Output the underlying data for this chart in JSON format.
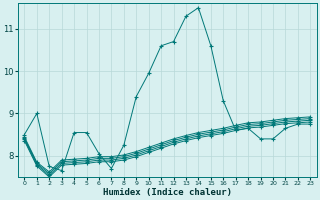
{
  "xlabel": "Humidex (Indice chaleur)",
  "bg_color": "#d8f0f0",
  "grid_color": "#b8d8d8",
  "line_color": "#007878",
  "xlim": [
    -0.5,
    23.5
  ],
  "ylim": [
    7.5,
    11.6
  ],
  "yticks": [
    8,
    9,
    10,
    11
  ],
  "xticks": [
    0,
    1,
    2,
    3,
    4,
    5,
    6,
    7,
    8,
    9,
    10,
    11,
    12,
    13,
    14,
    15,
    16,
    17,
    18,
    19,
    20,
    21,
    22,
    23
  ],
  "series": [
    {
      "x": [
        0,
        1,
        2,
        3,
        4,
        5,
        6,
        7,
        8,
        9,
        10,
        11,
        12,
        13,
        14,
        15,
        16,
        17,
        18,
        19,
        20,
        21,
        22,
        23
      ],
      "y": [
        8.5,
        9.0,
        7.75,
        7.65,
        8.55,
        8.55,
        8.05,
        7.7,
        8.25,
        9.4,
        9.95,
        10.6,
        10.7,
        11.3,
        11.5,
        10.6,
        9.3,
        8.6,
        8.65,
        8.4,
        8.4,
        8.65,
        8.75,
        8.75
      ]
    },
    {
      "x": [
        0,
        1,
        2,
        3,
        4,
        5,
        6,
        7,
        8,
        9,
        10,
        11,
        12,
        13,
        14,
        15,
        16,
        17,
        18,
        19,
        20,
        21,
        22,
        23
      ],
      "y": [
        8.45,
        7.85,
        7.62,
        7.9,
        7.92,
        7.94,
        7.98,
        7.98,
        8.02,
        8.1,
        8.2,
        8.3,
        8.4,
        8.48,
        8.55,
        8.6,
        8.65,
        8.72,
        8.78,
        8.8,
        8.84,
        8.88,
        8.9,
        8.92
      ]
    },
    {
      "x": [
        0,
        1,
        2,
        3,
        4,
        5,
        6,
        7,
        8,
        9,
        10,
        11,
        12,
        13,
        14,
        15,
        16,
        17,
        18,
        19,
        20,
        21,
        22,
        23
      ],
      "y": [
        8.42,
        7.82,
        7.58,
        7.86,
        7.88,
        7.9,
        7.94,
        7.94,
        7.98,
        8.06,
        8.16,
        8.26,
        8.36,
        8.44,
        8.51,
        8.56,
        8.61,
        8.68,
        8.74,
        8.76,
        8.8,
        8.84,
        8.86,
        8.88
      ]
    },
    {
      "x": [
        0,
        1,
        2,
        3,
        4,
        5,
        6,
        7,
        8,
        9,
        10,
        11,
        12,
        13,
        14,
        15,
        16,
        17,
        18,
        19,
        20,
        21,
        22,
        23
      ],
      "y": [
        8.39,
        7.79,
        7.54,
        7.82,
        7.84,
        7.86,
        7.9,
        7.9,
        7.94,
        8.02,
        8.12,
        8.22,
        8.32,
        8.4,
        8.47,
        8.52,
        8.57,
        8.64,
        8.7,
        8.72,
        8.76,
        8.8,
        8.82,
        8.84
      ]
    },
    {
      "x": [
        0,
        1,
        2,
        3,
        4,
        5,
        6,
        7,
        8,
        9,
        10,
        11,
        12,
        13,
        14,
        15,
        16,
        17,
        18,
        19,
        20,
        21,
        22,
        23
      ],
      "y": [
        8.36,
        7.76,
        7.5,
        7.78,
        7.8,
        7.82,
        7.86,
        7.86,
        7.9,
        7.98,
        8.08,
        8.18,
        8.28,
        8.36,
        8.43,
        8.48,
        8.53,
        8.6,
        8.66,
        8.68,
        8.72,
        8.76,
        8.78,
        8.8
      ]
    }
  ]
}
